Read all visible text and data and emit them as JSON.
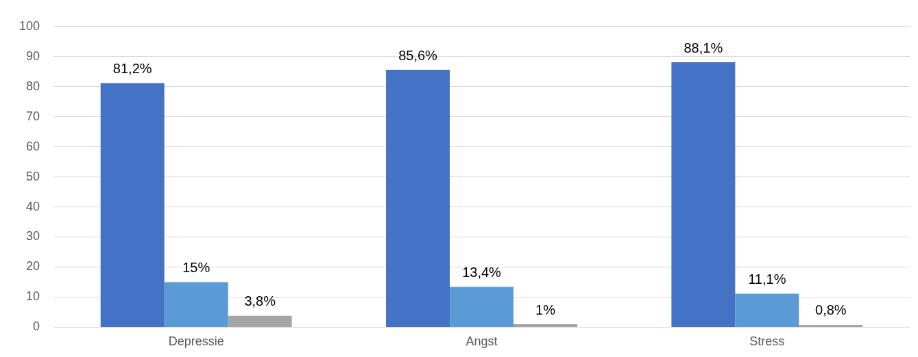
{
  "chart_data": {
    "type": "bar",
    "categories": [
      "Depressie",
      "Angst",
      "Stress"
    ],
    "series": [
      {
        "color": "#4472c4",
        "values": [
          81.2,
          85.6,
          88.1
        ],
        "value_labels": [
          "81,2%",
          "85,6%",
          "88,1%"
        ]
      },
      {
        "color": "#5b9bd5",
        "values": [
          15,
          13.4,
          11.1
        ],
        "value_labels": [
          "15%",
          "13,4%",
          "11,1%"
        ]
      },
      {
        "color": "#a5a5a5",
        "values": [
          3.8,
          1,
          0.8
        ],
        "value_labels": [
          "3,8%",
          "1%",
          "0,8%"
        ]
      }
    ],
    "ylim": [
      0,
      100
    ],
    "yticks": [
      0,
      10,
      20,
      30,
      40,
      50,
      60,
      70,
      80,
      90,
      100
    ],
    "grid": "y",
    "legend": false
  }
}
